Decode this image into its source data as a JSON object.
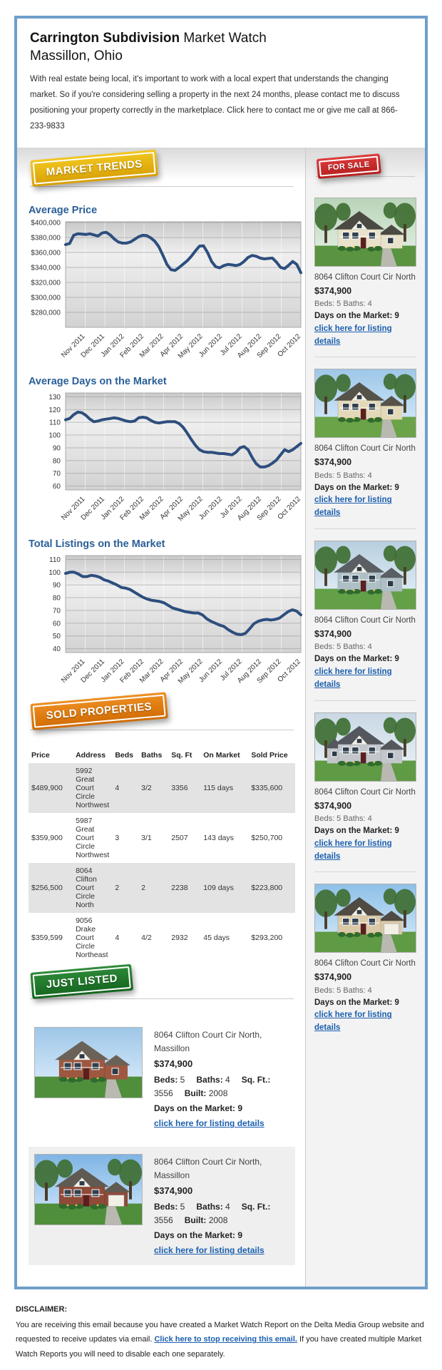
{
  "header": {
    "title_bold": "Carrington Subdivision",
    "title_rest": " Market Watch",
    "subtitle": "Massillon, Ohio",
    "intro": "With real estate being local, it's important to work with a local expert that understands the changing market. So if you're considering selling a property in the next 24 months, please contact me to discuss positioning your property correctly in the marketplace. Click here to contact me or give me call at 866-233-9833"
  },
  "badges": {
    "market_trends": "MARKET TRENDS",
    "for_sale": "FOR SALE",
    "sold_properties": "SOLD PROPERTIES",
    "just_listed": "JUST LISTED"
  },
  "colors": {
    "accent_blue": "#2b5f97",
    "line_navy": "#2d4e7e",
    "link_blue": "#1b5fae",
    "frame_blue": "#6f9fca",
    "badge_gold": "#e5b517",
    "badge_red": "#c92b2b",
    "badge_orange": "#e07d12",
    "badge_green": "#1e7a28"
  },
  "chart_data": [
    {
      "type": "line",
      "title": "Average Price",
      "x_tick_labels": [
        "Nov 2011",
        "Dec 2011",
        "Jan 2012",
        "Feb 2012",
        "Mar 2012",
        "Apr 2012",
        "May 2012",
        "Jun 2012",
        "Jul 2012",
        "Aug 2012",
        "Sep 2012",
        "Oct 2012"
      ],
      "ylim": [
        260000,
        401000
      ],
      "yticks": [
        280000,
        300000,
        320000,
        340000,
        360000,
        380000,
        400000
      ],
      "ytick_labels": [
        "$280,000",
        "$300,000",
        "$320,000",
        "$340,000",
        "$360,000",
        "$380,000",
        "$400,000"
      ],
      "grid": true,
      "legend": "none",
      "values": [
        370500,
        372000,
        383000,
        385000,
        384500,
        384000,
        385000,
        383500,
        382000,
        386000,
        387000,
        383500,
        378000,
        374000,
        372500,
        372500,
        374000,
        377500,
        381000,
        383000,
        382500,
        379500,
        375000,
        367500,
        356000,
        344000,
        337000,
        336000,
        340000,
        344500,
        349000,
        355000,
        362000,
        368500,
        369000,
        360000,
        348000,
        341000,
        339500,
        342500,
        344000,
        343500,
        342500,
        344000,
        348000,
        353500,
        356000,
        355000,
        352500,
        351500,
        352000,
        352500,
        347000,
        340000,
        338500,
        343000,
        348000,
        344000,
        333000
      ]
    },
    {
      "type": "line",
      "title": "Average Days on the Market",
      "x_tick_labels": [
        "Nov 2011",
        "Dec 2011",
        "Jan 2012",
        "Feb 2012",
        "Mar 2012",
        "Apr 2012",
        "May 2012",
        "Jun 2012",
        "Jul 2012",
        "Aug 2012",
        "Sep 2012",
        "Oct 2012"
      ],
      "ylim": [
        57,
        133
      ],
      "yticks": [
        60,
        70,
        80,
        90,
        100,
        110,
        120,
        130
      ],
      "ytick_labels": [
        "60",
        "70",
        "80",
        "90",
        "100",
        "110",
        "120",
        "130"
      ],
      "grid": true,
      "legend": "none",
      "values": [
        112,
        113,
        116,
        118,
        117.5,
        115.5,
        112.5,
        110.5,
        111,
        112,
        112.5,
        113,
        113.5,
        113,
        112,
        111,
        110.5,
        111,
        113.5,
        114,
        113.5,
        111.5,
        110,
        109.5,
        110,
        110.5,
        110.5,
        110.5,
        109,
        106,
        101.5,
        96.5,
        92,
        88.5,
        87,
        86.5,
        86.5,
        86,
        85.5,
        85.5,
        85,
        84.5,
        86.5,
        90,
        91,
        88.5,
        82.5,
        77.5,
        75,
        75,
        76,
        78,
        80.5,
        84.5,
        88.5,
        87,
        88.5,
        91,
        93.5
      ]
    },
    {
      "type": "line",
      "title": "Total Listings on the Market",
      "x_tick_labels": [
        "Nov 2011",
        "Dec 2011",
        "Jan 2012",
        "Feb 2012",
        "Mar 2012",
        "Apr 2012",
        "May 2012",
        "Jun 2012",
        "Jul 2012",
        "Aug 2012",
        "Sep 2012",
        "Oct 2012"
      ],
      "ylim": [
        37,
        113
      ],
      "yticks": [
        40,
        50,
        60,
        70,
        80,
        90,
        100,
        110
      ],
      "ytick_labels": [
        "40",
        "50",
        "60",
        "70",
        "80",
        "90",
        "100",
        "110"
      ],
      "grid": true,
      "legend": "none",
      "values": [
        99,
        100,
        100,
        98.5,
        96.5,
        96.5,
        97.5,
        97,
        96,
        94,
        93,
        91.5,
        90,
        88,
        87.5,
        86.5,
        84.5,
        82.5,
        80.5,
        79,
        78,
        77.5,
        77,
        76,
        74,
        72,
        71,
        70,
        69,
        68.5,
        68,
        68,
        66.5,
        63.5,
        61.5,
        60,
        58.5,
        57.5,
        55,
        53,
        51.5,
        51,
        52,
        55.5,
        59.5,
        61.5,
        62.5,
        63,
        62.5,
        63,
        64,
        66.5,
        69,
        70.5,
        69.5,
        66.5
      ]
    }
  ],
  "for_sale": {
    "listings": [
      {
        "address": "8064 Clifton Court Cir North",
        "price": "$374,900",
        "beds_baths": "Beds: 5 Baths: 4",
        "days": "Days on the Market: 9",
        "link": "click here for listing details"
      },
      {
        "address": "8064 Clifton Court Cir North",
        "price": "$374,900",
        "beds_baths": "Beds: 5 Baths: 4",
        "days": "Days on the Market: 9",
        "link": "click here for listing details"
      },
      {
        "address": "8064 Clifton Court Cir North",
        "price": "$374,900",
        "beds_baths": "Beds: 5 Baths: 4",
        "days": "Days on the Market: 9",
        "link": "click here for listing details"
      },
      {
        "address": "8064 Clifton Court Cir North",
        "price": "$374,900",
        "beds_baths": "Beds: 5 Baths: 4",
        "days": "Days on the Market: 9",
        "link": "click here for listing details"
      },
      {
        "address": "8064 Clifton Court Cir North",
        "price": "$374,900",
        "beds_baths": "Beds: 5 Baths: 4",
        "days": "Days on the Market: 9",
        "link": "click here for listing details"
      }
    ]
  },
  "sold": {
    "headers": [
      "Price",
      "Address",
      "Beds",
      "Baths",
      "Sq. Ft",
      "On Market",
      "Sold Price"
    ],
    "rows": [
      [
        "$489,900",
        "5992 Great Court Circle Northwest",
        "4",
        "3/2",
        "3356",
        "115 days",
        "$335,600"
      ],
      [
        "$359,900",
        "5987 Great Court Circle Northwest",
        "3",
        "3/1",
        "2507",
        "143 days",
        "$250,700"
      ],
      [
        "$256,500",
        "8064 Clifton Court Circle North",
        "2",
        "2",
        "2238",
        "109 days",
        "$223,800"
      ],
      [
        "$359,599",
        "9056 Drake Court Circle Northeast",
        "4",
        "4/2",
        "2932",
        "45 days",
        "$293,200"
      ]
    ]
  },
  "just_listed": {
    "listings": [
      {
        "address": "8064 Clifton Court Cir North, Massillon",
        "price": "$374,900",
        "specs": [
          {
            "label": "Beds:",
            "value": "5"
          },
          {
            "label": "Baths:",
            "value": "4"
          },
          {
            "label": "Sq. Ft.:",
            "value": "3556"
          },
          {
            "label": "Built:",
            "value": "2008"
          }
        ],
        "days": "Days on the Market: 9",
        "link": "click here for listing details"
      },
      {
        "address": "8064 Clifton Court Cir North, Massillon",
        "price": "$374,900",
        "specs": [
          {
            "label": "Beds:",
            "value": "5"
          },
          {
            "label": "Baths:",
            "value": "4"
          },
          {
            "label": "Sq. Ft.:",
            "value": "3556"
          },
          {
            "label": "Built:",
            "value": "2008"
          }
        ],
        "days": "Days on the Market: 9",
        "link": "click here for listing details"
      }
    ]
  },
  "footer": {
    "label": "DISCLAIMER:",
    "text_before": "You are receiving this email because you have created a Market Watch Report on the Delta Media Group website and requested to receive updates via email. ",
    "link": "Click here to stop receiving this email.",
    "text_after": " If you have created multiple Market Watch Reports you will need to disable each one separately."
  }
}
